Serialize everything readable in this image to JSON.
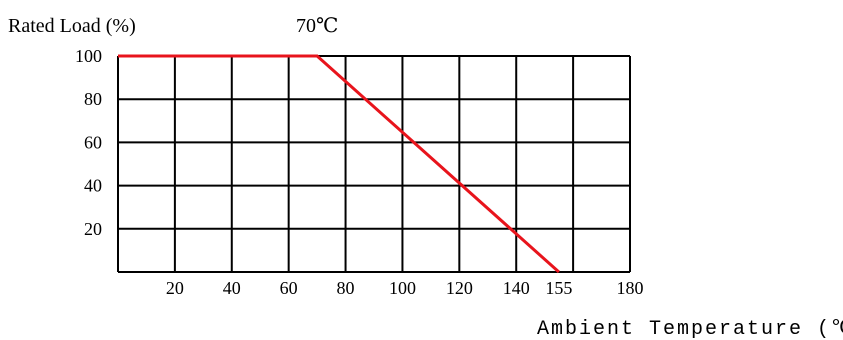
{
  "chart_data": {
    "type": "line",
    "title": "",
    "ylabel": "Rated Load (%)",
    "xlabel": "Ambient Temperature (℃)",
    "annotation": "70℃",
    "x_ticks": [
      20,
      40,
      60,
      80,
      100,
      120,
      140,
      155,
      180
    ],
    "y_ticks": [
      20,
      40,
      60,
      80,
      100
    ],
    "x_grid": [
      0,
      20,
      40,
      60,
      80,
      100,
      120,
      140,
      160,
      180
    ],
    "y_grid": [
      0,
      20,
      40,
      60,
      80,
      100
    ],
    "xlim": [
      0,
      180
    ],
    "ylim": [
      0,
      100
    ],
    "grid": true,
    "series": [
      {
        "color": "#e8141c",
        "x": [
          0,
          70,
          155
        ],
        "y": [
          100,
          100,
          0
        ]
      }
    ]
  }
}
